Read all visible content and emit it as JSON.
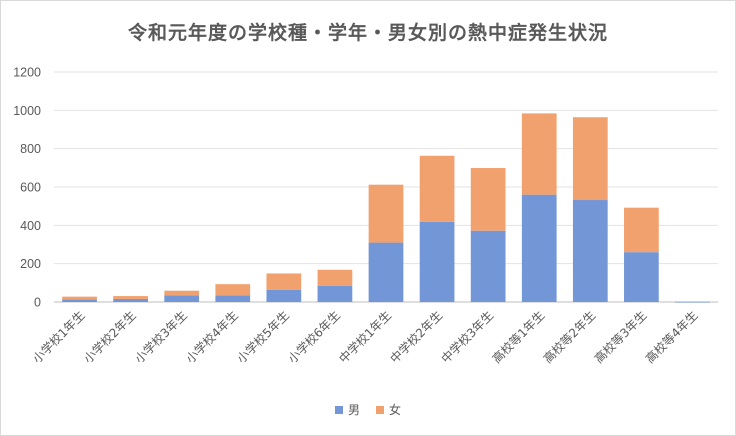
{
  "chart_data": {
    "type": "bar",
    "stacked": true,
    "title": "令和元年度の学校種・学年・男女別の熱中症発生状況",
    "categories": [
      "小学校1年生",
      "小学校2年生",
      "小学校3年生",
      "小学校4年生",
      "小学校5年生",
      "小学校6年生",
      "中学校1年生",
      "中学校2年生",
      "中学校3年生",
      "高校等1年生",
      "高校等2年生",
      "高校等3年生",
      "高校等4年生"
    ],
    "series": [
      {
        "name": "男",
        "color": "#7396d6",
        "values": [
          14,
          16,
          35,
          35,
          63,
          85,
          310,
          418,
          372,
          560,
          532,
          260,
          0
        ]
      },
      {
        "name": "女",
        "color": "#f1a16d",
        "values": [
          14,
          15,
          24,
          58,
          86,
          83,
          302,
          345,
          327,
          424,
          432,
          232,
          3
        ]
      }
    ],
    "ylim": [
      0,
      1200
    ],
    "yticks": [
      0,
      200,
      400,
      600,
      800,
      1000,
      1200
    ],
    "grid": true,
    "legend_position": "bottom"
  }
}
